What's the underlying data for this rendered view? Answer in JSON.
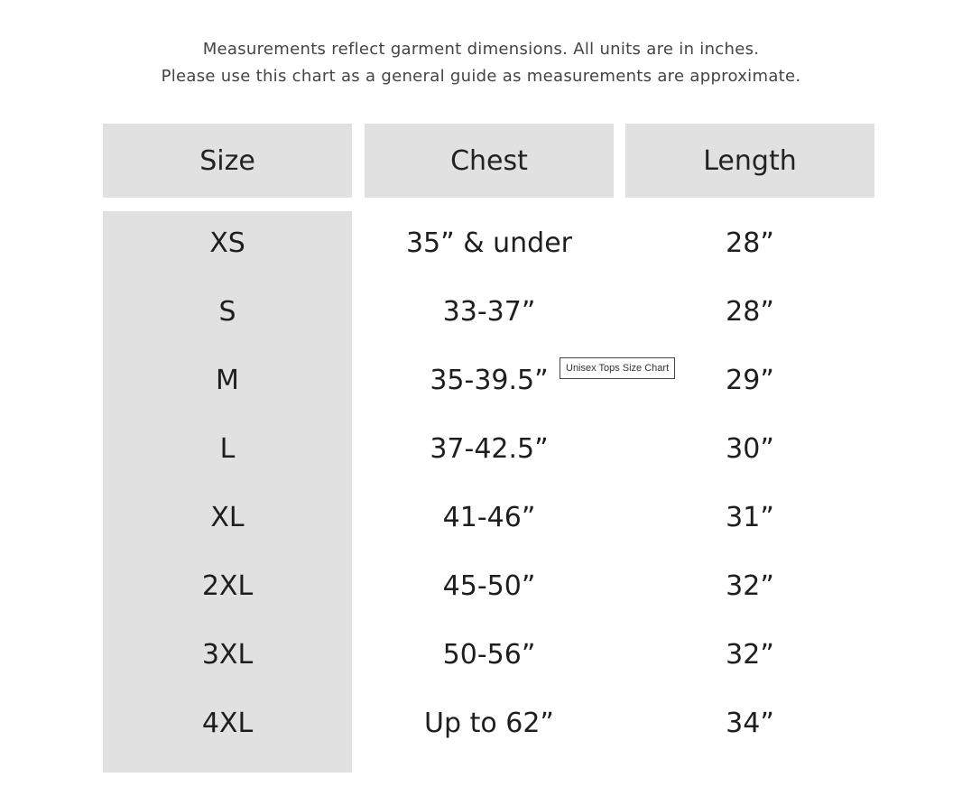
{
  "intro": {
    "line1": "Measurements reflect garment dimensions. All units are in inches.",
    "line2": "Please use this chart as a general guide as measurements are approximate."
  },
  "table": {
    "headers": [
      "Size",
      "Chest",
      "Length"
    ],
    "rows": [
      [
        "XS",
        "35” & under",
        "28”"
      ],
      [
        "S",
        "33-37”",
        "28”"
      ],
      [
        "M",
        "35-39.5”",
        "29”"
      ],
      [
        "L",
        "37-42.5”",
        "30”"
      ],
      [
        "XL",
        "41-46”",
        "31”"
      ],
      [
        "2XL",
        "45-50”",
        "32”"
      ],
      [
        "3XL",
        "50-56”",
        "32”"
      ],
      [
        "4XL",
        "Up to 62”",
        "34”"
      ]
    ]
  },
  "tooltip": "Unisex Tops Size Chart",
  "colors": {
    "header_bg": "#e0e1e0",
    "text": "#222222"
  }
}
